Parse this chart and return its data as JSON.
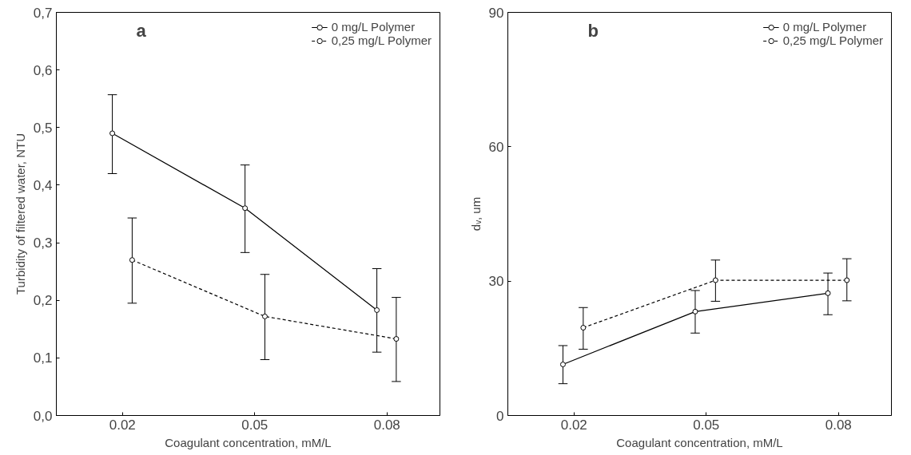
{
  "chart_data": [
    {
      "type": "line",
      "xlabel": "Coagulant concentration, mM/L",
      "ylabel": "Turbidity of filtered water, NTU",
      "xlim": [
        0.005,
        0.092
      ],
      "xticks": [
        0.02,
        0.05,
        0.08
      ],
      "ylim": [
        0,
        0.7
      ],
      "yticks": [
        {
          "value": 0,
          "label": "0,0"
        },
        {
          "value": 0.1,
          "label": "0,1"
        },
        {
          "value": 0.2,
          "label": "0,2"
        },
        {
          "value": 0.3,
          "label": "0,3"
        },
        {
          "value": 0.4,
          "label": "0,4"
        },
        {
          "value": 0.5,
          "label": "0,5"
        },
        {
          "value": 0.6,
          "label": "0,6"
        },
        {
          "value": 0.7,
          "label": "0,7"
        }
      ],
      "series": [
        {
          "name": "0 mg/L Polymer",
          "color": "#000000",
          "line_style": "solid",
          "x": [
            0.0177,
            0.0478,
            0.0777
          ],
          "values": [
            0.49,
            0.36,
            0.183
          ],
          "errors": [
            [
              0.42,
              0.557
            ],
            [
              0.283,
              0.435
            ],
            [
              0.11,
              0.255
            ]
          ]
        },
        {
          "name": "0,25 mg/L Polymer",
          "color": "#000000",
          "line_style": "dashed",
          "x": [
            0.0222,
            0.0523,
            0.0821
          ],
          "values": [
            0.27,
            0.172,
            0.133
          ],
          "errors": [
            [
              0.195,
              0.343
            ],
            [
              0.097,
              0.245
            ],
            [
              0.059,
              0.205
            ]
          ]
        }
      ],
      "marker": "circle",
      "legend": "top right",
      "annotations": [
        "a"
      ]
    },
    {
      "type": "line",
      "xlabel": "Coagulant concentration, mM/L",
      "ylabel": "dᵥ, um",
      "xlim": [
        0.005,
        0.092
      ],
      "xticks": [
        0.02,
        0.05,
        0.08
      ],
      "ylim": [
        0,
        90
      ],
      "yticks": [
        0,
        30,
        60,
        90
      ],
      "series": [
        {
          "name": "0 mg/L Polymer",
          "color": "#000000",
          "line_style": "solid",
          "x": [
            0.0175,
            0.0475,
            0.0776
          ],
          "values": [
            11.4,
            23.2,
            27.3
          ],
          "errors": [
            [
              7.1,
              15.6
            ],
            [
              18.4,
              27.9
            ],
            [
              22.5,
              31.8
            ]
          ]
        },
        {
          "name": "0,25 mg/L Polymer",
          "color": "#000000",
          "line_style": "dashed",
          "x": [
            0.0221,
            0.0521,
            0.0819
          ],
          "values": [
            19.6,
            30.2,
            30.2
          ],
          "errors": [
            [
              14.8,
              24.1
            ],
            [
              25.5,
              34.7
            ],
            [
              25.6,
              35.0
            ]
          ]
        }
      ],
      "marker": "circle",
      "legend": "top right",
      "annotations": [
        "b"
      ]
    }
  ]
}
